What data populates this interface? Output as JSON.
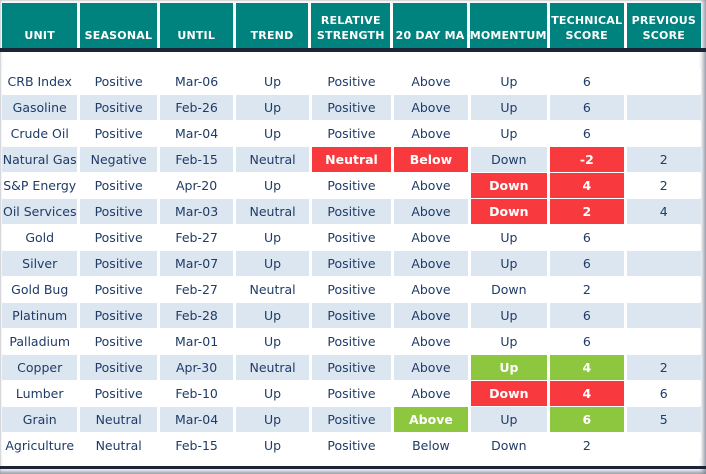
{
  "table": {
    "columns": [
      {
        "key": "unit",
        "label": "UNIT"
      },
      {
        "key": "seasonal",
        "label": "SEASONAL"
      },
      {
        "key": "until",
        "label": "UNTIL"
      },
      {
        "key": "trend",
        "label": "TREND"
      },
      {
        "key": "rel_strength",
        "label": "RELATIVE STRENGTH"
      },
      {
        "key": "ma20",
        "label": "20 DAY MA"
      },
      {
        "key": "momentum",
        "label": "MOMENTUM"
      },
      {
        "key": "tech_score",
        "label": "TECHNICAL SCORE"
      },
      {
        "key": "prev_score",
        "label": "PREVIOUS SCORE"
      }
    ],
    "rows": [
      {
        "unit": "CRB Index",
        "seasonal": "Positive",
        "until": "Mar-06",
        "trend": "Up",
        "rel_strength": "Positive",
        "ma20": "Above",
        "momentum": "Up",
        "tech_score": "6",
        "prev_score": "",
        "highlights": {}
      },
      {
        "unit": "Gasoline",
        "seasonal": "Positive",
        "until": "Feb-26",
        "trend": "Up",
        "rel_strength": "Positive",
        "ma20": "Above",
        "momentum": "Up",
        "tech_score": "6",
        "prev_score": "",
        "highlights": {}
      },
      {
        "unit": "Crude Oil",
        "seasonal": "Positive",
        "until": "Mar-04",
        "trend": "Up",
        "rel_strength": "Positive",
        "ma20": "Above",
        "momentum": "Up",
        "tech_score": "6",
        "prev_score": "",
        "highlights": {}
      },
      {
        "unit": "Natural Gas",
        "seasonal": "Negative",
        "until": "Feb-15",
        "trend": "Neutral",
        "rel_strength": "Neutral",
        "ma20": "Below",
        "momentum": "Down",
        "tech_score": "-2",
        "prev_score": "2",
        "highlights": {
          "rel_strength": "red",
          "ma20": "red",
          "tech_score": "red"
        }
      },
      {
        "unit": "S&P Energy",
        "seasonal": "Positive",
        "until": "Apr-20",
        "trend": "Up",
        "rel_strength": "Positive",
        "ma20": "Above",
        "momentum": "Down",
        "tech_score": "4",
        "prev_score": "2",
        "highlights": {
          "momentum": "red",
          "tech_score": "red"
        }
      },
      {
        "unit": "Oil Services",
        "seasonal": "Positive",
        "until": "Mar-03",
        "trend": "Neutral",
        "rel_strength": "Positive",
        "ma20": "Above",
        "momentum": "Down",
        "tech_score": "2",
        "prev_score": "4",
        "highlights": {
          "momentum": "red",
          "tech_score": "red"
        }
      },
      {
        "unit": "Gold",
        "seasonal": "Positive",
        "until": "Feb-27",
        "trend": "Up",
        "rel_strength": "Positive",
        "ma20": "Above",
        "momentum": "Up",
        "tech_score": "6",
        "prev_score": "",
        "highlights": {}
      },
      {
        "unit": "Silver",
        "seasonal": "Positive",
        "until": "Mar-07",
        "trend": "Up",
        "rel_strength": "Positive",
        "ma20": "Above",
        "momentum": "Up",
        "tech_score": "6",
        "prev_score": "",
        "highlights": {}
      },
      {
        "unit": "Gold Bug",
        "seasonal": "Positive",
        "until": "Feb-27",
        "trend": "Neutral",
        "rel_strength": "Positive",
        "ma20": "Above",
        "momentum": "Down",
        "tech_score": "2",
        "prev_score": "",
        "highlights": {}
      },
      {
        "unit": "Platinum",
        "seasonal": "Positive",
        "until": "Feb-28",
        "trend": "Up",
        "rel_strength": "Positive",
        "ma20": "Above",
        "momentum": "Up",
        "tech_score": "6",
        "prev_score": "",
        "highlights": {}
      },
      {
        "unit": "Palladium",
        "seasonal": "Positive",
        "until": "Mar-01",
        "trend": "Up",
        "rel_strength": "Positive",
        "ma20": "Above",
        "momentum": "Up",
        "tech_score": "6",
        "prev_score": "",
        "highlights": {}
      },
      {
        "unit": "Copper",
        "seasonal": "Positive",
        "until": "Apr-30",
        "trend": "Neutral",
        "rel_strength": "Positive",
        "ma20": "Above",
        "momentum": "Up",
        "tech_score": "4",
        "prev_score": "2",
        "highlights": {
          "momentum": "green",
          "tech_score": "green"
        }
      },
      {
        "unit": "Lumber",
        "seasonal": "Positive",
        "until": "Feb-10",
        "trend": "Up",
        "rel_strength": "Positive",
        "ma20": "Above",
        "momentum": "Down",
        "tech_score": "4",
        "prev_score": "6",
        "highlights": {
          "momentum": "red",
          "tech_score": "red"
        }
      },
      {
        "unit": "Grain",
        "seasonal": "Neutral",
        "until": "Mar-04",
        "trend": "Up",
        "rel_strength": "Positive",
        "ma20": "Above",
        "momentum": "Up",
        "tech_score": "6",
        "prev_score": "5",
        "highlights": {
          "ma20": "green",
          "tech_score": "green"
        }
      },
      {
        "unit": "Agriculture",
        "seasonal": "Neutral",
        "until": "Feb-15",
        "trend": "Up",
        "rel_strength": "Positive",
        "ma20": "Below",
        "momentum": "Down",
        "tech_score": "2",
        "prev_score": "",
        "highlights": {}
      }
    ]
  },
  "colors": {
    "header_bg": "#00827E",
    "row_alt": "#DCE6F1",
    "row_base": "#FFFFFF",
    "red": "#F8393D",
    "green": "#8DC63F",
    "text": "#1F3B66",
    "divider": "#1B2536"
  }
}
